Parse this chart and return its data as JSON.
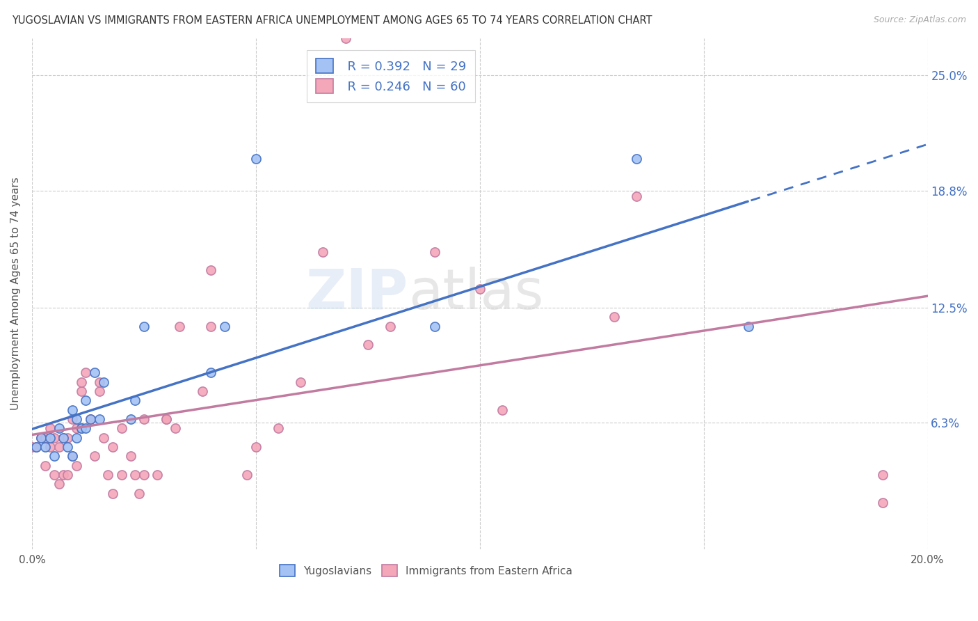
{
  "title": "YUGOSLAVIAN VS IMMIGRANTS FROM EASTERN AFRICA UNEMPLOYMENT AMONG AGES 65 TO 74 YEARS CORRELATION CHART",
  "source": "Source: ZipAtlas.com",
  "ylabel": "Unemployment Among Ages 65 to 74 years",
  "xlim": [
    0.0,
    0.2
  ],
  "ylim": [
    -0.005,
    0.27
  ],
  "ytick_positions": [
    0.063,
    0.125,
    0.188,
    0.25
  ],
  "ytick_labels": [
    "6.3%",
    "12.5%",
    "18.8%",
    "25.0%"
  ],
  "blue_R": 0.392,
  "blue_N": 29,
  "pink_R": 0.246,
  "pink_N": 60,
  "blue_color": "#a4c2f4",
  "pink_color": "#f4a7b9",
  "blue_line_color": "#4472c4",
  "pink_line_color": "#c27ba0",
  "grid_color": "#cccccc",
  "background_color": "#ffffff",
  "blue_scatter_x": [
    0.001,
    0.002,
    0.003,
    0.004,
    0.005,
    0.006,
    0.007,
    0.008,
    0.009,
    0.009,
    0.01,
    0.01,
    0.011,
    0.011,
    0.012,
    0.012,
    0.013,
    0.014,
    0.015,
    0.016,
    0.022,
    0.023,
    0.025,
    0.04,
    0.043,
    0.05,
    0.09,
    0.135,
    0.16
  ],
  "blue_scatter_y": [
    0.05,
    0.055,
    0.05,
    0.055,
    0.045,
    0.06,
    0.055,
    0.05,
    0.045,
    0.07,
    0.055,
    0.065,
    0.06,
    0.06,
    0.06,
    0.075,
    0.065,
    0.09,
    0.065,
    0.085,
    0.065,
    0.075,
    0.115,
    0.09,
    0.115,
    0.205,
    0.115,
    0.205,
    0.115
  ],
  "pink_scatter_x": [
    0.0,
    0.001,
    0.002,
    0.003,
    0.003,
    0.004,
    0.004,
    0.005,
    0.005,
    0.006,
    0.006,
    0.007,
    0.007,
    0.008,
    0.008,
    0.009,
    0.009,
    0.01,
    0.01,
    0.011,
    0.011,
    0.012,
    0.013,
    0.014,
    0.015,
    0.015,
    0.016,
    0.017,
    0.018,
    0.018,
    0.02,
    0.02,
    0.022,
    0.023,
    0.024,
    0.025,
    0.025,
    0.028,
    0.03,
    0.03,
    0.032,
    0.033,
    0.038,
    0.04,
    0.04,
    0.048,
    0.05,
    0.055,
    0.06,
    0.065,
    0.07,
    0.075,
    0.08,
    0.09,
    0.1,
    0.105,
    0.13,
    0.135,
    0.19,
    0.19
  ],
  "pink_scatter_y": [
    0.05,
    0.05,
    0.055,
    0.04,
    0.055,
    0.05,
    0.06,
    0.035,
    0.055,
    0.03,
    0.05,
    0.035,
    0.055,
    0.035,
    0.055,
    0.045,
    0.065,
    0.04,
    0.06,
    0.08,
    0.085,
    0.09,
    0.065,
    0.045,
    0.08,
    0.085,
    0.055,
    0.035,
    0.025,
    0.05,
    0.035,
    0.06,
    0.045,
    0.035,
    0.025,
    0.035,
    0.065,
    0.035,
    0.065,
    0.065,
    0.06,
    0.115,
    0.08,
    0.115,
    0.145,
    0.035,
    0.05,
    0.06,
    0.085,
    0.155,
    0.27,
    0.105,
    0.115,
    0.155,
    0.135,
    0.07,
    0.12,
    0.185,
    0.02,
    0.035
  ],
  "watermark_zip": "ZIP",
  "watermark_atlas": "atlas"
}
